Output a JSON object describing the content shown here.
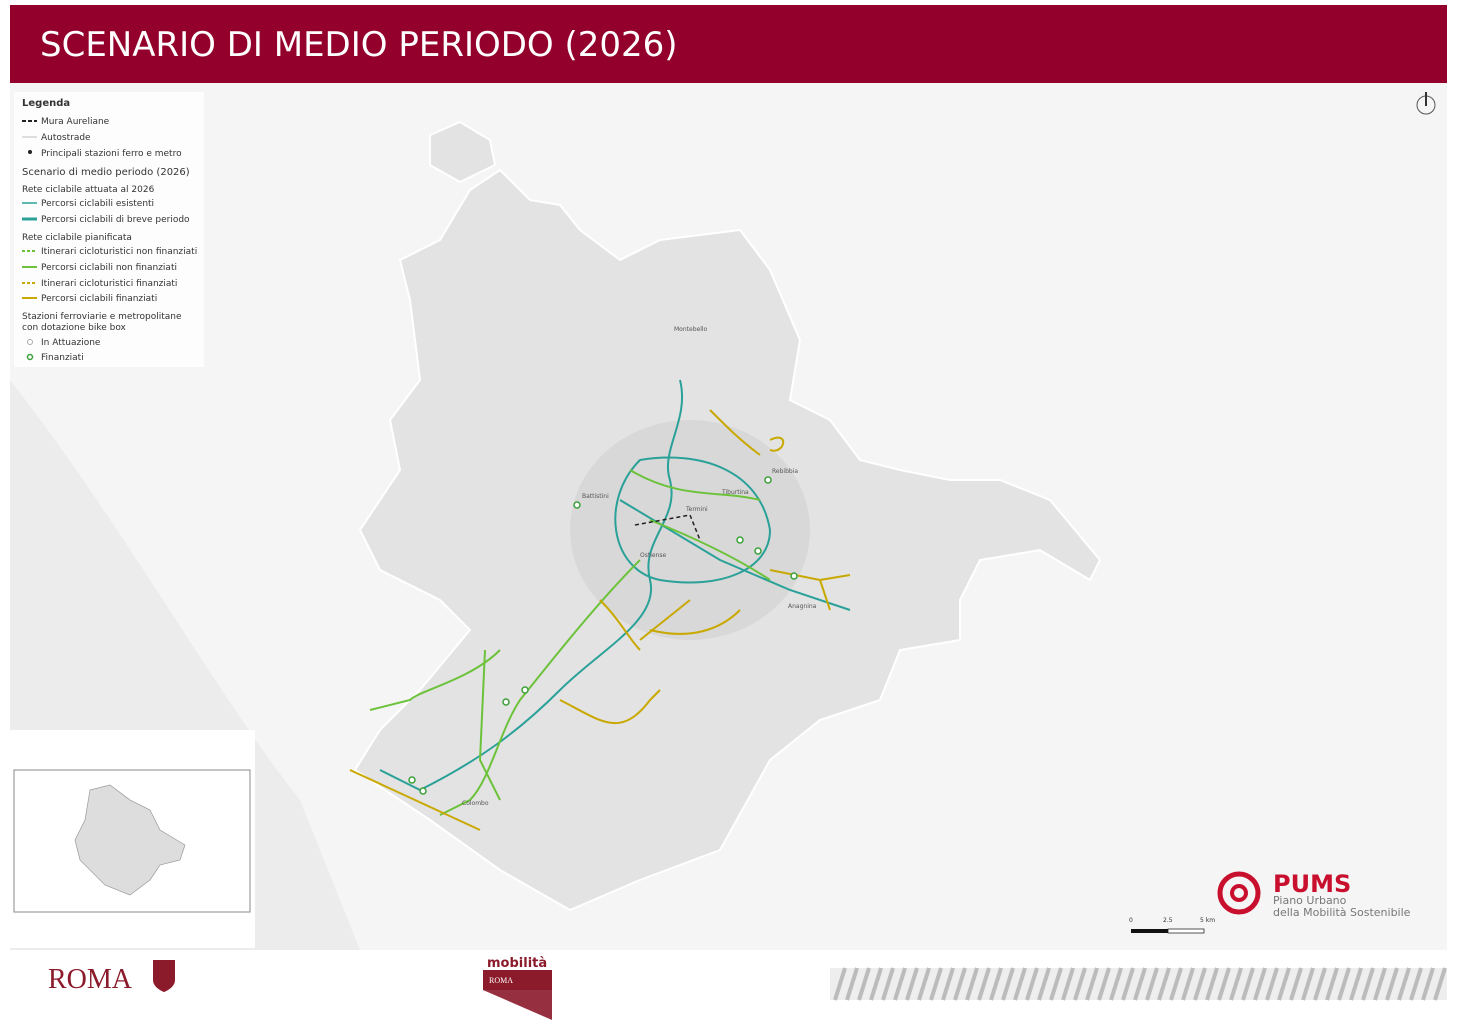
{
  "header": {
    "title": "SCENARIO DI MEDIO PERIODO (2026)"
  },
  "legend": {
    "title": "Legenda",
    "base_items": [
      "Mura Aureliane",
      "Autostrade",
      "Principali stazioni ferro e metro"
    ],
    "scenario_title": "Scenario di medio periodo (2026)",
    "implemented": {
      "title": "Rete ciclabile attuata al 2026",
      "items": [
        "Percorsi ciclabili esistenti",
        "Percorsi ciclabili di breve periodo"
      ]
    },
    "planned": {
      "title": "Rete ciclabile pianificata",
      "items": [
        "Itinerari cicloturistici non finanziati",
        "Percorsi ciclabili non finanziati",
        "Itinerari cicloturistici finanziati",
        "Percorsi ciclabili finanziati"
      ]
    },
    "stations": {
      "title_lines": [
        "Stazioni ferroviarie e metropolitane",
        "con dotazione bike box"
      ],
      "items": [
        "In Attuazione",
        "Finanziati"
      ]
    }
  },
  "map": {
    "place_labels": [
      "Montebello",
      "Battistini",
      "Rebibbia",
      "Tiburtina",
      "Termini",
      "Ostiense",
      "Anagnina",
      "Colombo"
    ]
  },
  "scale_bar": {
    "labels": [
      "0",
      "2.5",
      "5 km"
    ]
  },
  "branding": {
    "pums": {
      "title": "PUMS",
      "subtitle_lines": [
        "Piano Urbano",
        "della Mobilità Sostenibile"
      ]
    },
    "roma": "ROMA",
    "mobilita": {
      "title": "mobilità",
      "subtitle": "ROMA"
    }
  }
}
